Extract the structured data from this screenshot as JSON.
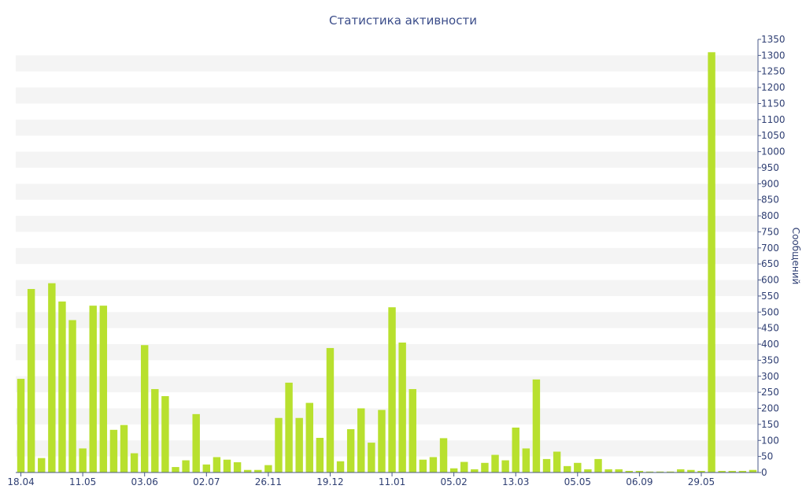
{
  "chart_data": {
    "type": "bar",
    "title": "Статистика активности",
    "ylabel": "Сообщений",
    "ylim": [
      0,
      1350
    ],
    "y_ticks": [
      0,
      50,
      100,
      150,
      200,
      250,
      300,
      350,
      400,
      450,
      500,
      550,
      600,
      650,
      700,
      750,
      800,
      850,
      900,
      950,
      1000,
      1050,
      1100,
      1150,
      1200,
      1250,
      1300,
      1350
    ],
    "y_axis_side": "right",
    "grid": "alternating horizontal bands",
    "x_tick_labels": [
      {
        "label": "18.04",
        "index": 0
      },
      {
        "label": "11.05",
        "index": 6
      },
      {
        "label": "03.06",
        "index": 12
      },
      {
        "label": "02.07",
        "index": 18
      },
      {
        "label": "26.11",
        "index": 24
      },
      {
        "label": "19.12",
        "index": 30
      },
      {
        "label": "11.01",
        "index": 36
      },
      {
        "label": "05.02",
        "index": 42
      },
      {
        "label": "13.03",
        "index": 48
      },
      {
        "label": "05.05",
        "index": 54
      },
      {
        "label": "06.09",
        "index": 60
      },
      {
        "label": "29.05",
        "index": 66
      }
    ],
    "series": [
      {
        "values": [
          292,
          572,
          45,
          590,
          533,
          475,
          75,
          520,
          520,
          133,
          148,
          60,
          397,
          260,
          238,
          17,
          38,
          182,
          25,
          48,
          40,
          32,
          8,
          8,
          23,
          170,
          280,
          170,
          217,
          108,
          388,
          35,
          135,
          200,
          93,
          195,
          515,
          405,
          260,
          40,
          48,
          107,
          13,
          33,
          10,
          30,
          55,
          38,
          140,
          75,
          290,
          42,
          65,
          20,
          30,
          10,
          42,
          10,
          10,
          5,
          5,
          3,
          3,
          3,
          10,
          8,
          5,
          1310,
          5,
          5,
          5,
          8
        ]
      }
    ],
    "colors": {
      "bar": "#b8e02e",
      "band": "#f4f4f4",
      "text": "#2f3f73",
      "axis": "#4a5a8a"
    }
  }
}
